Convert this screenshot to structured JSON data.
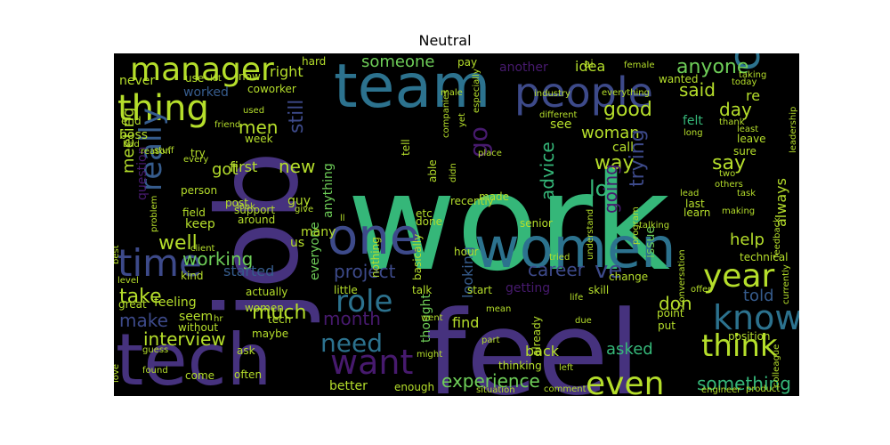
{
  "title": "Neutral",
  "palette": {
    "background": "#000000",
    "purple_dark": "#471a6e",
    "purple": "#46327e",
    "blue_purple": "#3d4a8a",
    "blue": "#365c8d",
    "teal_blue": "#2c728e",
    "teal": "#21908c",
    "green_teal": "#1fa088",
    "green": "#35b779",
    "light_green": "#6ece58",
    "lime": "#b5de2b"
  },
  "words": [
    {
      "text": "work",
      "color": "#35b779"
    },
    {
      "text": "feel",
      "color": "#46327e"
    },
    {
      "text": "job",
      "color": "#46327e"
    },
    {
      "text": "team",
      "color": "#2c728e"
    },
    {
      "text": "women",
      "color": "#2c728e"
    },
    {
      "text": "tech",
      "color": "#46327e"
    },
    {
      "text": "one",
      "color": "#3d4a8a"
    },
    {
      "text": "people",
      "color": "#3d4a8a"
    },
    {
      "text": "company",
      "color": "#2c728e"
    },
    {
      "text": "manager",
      "color": "#b5de2b"
    },
    {
      "text": "time",
      "color": "#3d4a8a"
    },
    {
      "text": "thing",
      "color": "#b5de2b"
    },
    {
      "text": "want",
      "color": "#471a6e"
    },
    {
      "text": "year",
      "color": "#b5de2b"
    },
    {
      "text": "know",
      "color": "#2c728e"
    },
    {
      "text": "think",
      "color": "#b5de2b"
    },
    {
      "text": "even",
      "color": "#b5de2b"
    },
    {
      "text": "role",
      "color": "#2c728e"
    },
    {
      "text": "really",
      "color": "#365c8d"
    },
    {
      "text": "need",
      "color": "#2c728e"
    },
    {
      "text": "working",
      "color": "#6ece58"
    },
    {
      "text": "say",
      "color": "#b5de2b"
    },
    {
      "text": "lot",
      "color": "#35b779"
    },
    {
      "text": "way",
      "color": "#b5de2b"
    },
    {
      "text": "go",
      "color": "#471a6e"
    },
    {
      "text": "good",
      "color": "#b5de2b"
    },
    {
      "text": "anyone",
      "color": "#6ece58"
    },
    {
      "text": "said",
      "color": "#b5de2b"
    },
    {
      "text": "day",
      "color": "#b5de2b"
    },
    {
      "text": "men",
      "color": "#b5de2b"
    },
    {
      "text": "still",
      "color": "#3d4a8a"
    },
    {
      "text": "someone",
      "color": "#6ece58"
    },
    {
      "text": "woman",
      "color": "#b5de2b"
    },
    {
      "text": "advice",
      "color": "#35b779"
    },
    {
      "text": "trying",
      "color": "#3d4a8a"
    },
    {
      "text": "going",
      "color": "#471a6e"
    },
    {
      "text": "career",
      "color": "#3d4a8a"
    },
    {
      "text": "ve",
      "color": "#3d4a8a"
    },
    {
      "text": "project",
      "color": "#3d4a8a"
    },
    {
      "text": "month",
      "color": "#471a6e"
    },
    {
      "text": "interview",
      "color": "#b5de2b"
    },
    {
      "text": "make",
      "color": "#3d4a8a"
    },
    {
      "text": "take",
      "color": "#b5de2b"
    },
    {
      "text": "much",
      "color": "#b5de2b"
    },
    {
      "text": "experience",
      "color": "#6ece58"
    },
    {
      "text": "something",
      "color": "#35b779"
    },
    {
      "text": "told",
      "color": "#365c8d"
    },
    {
      "text": "don",
      "color": "#b5de2b"
    },
    {
      "text": "help",
      "color": "#b5de2b"
    },
    {
      "text": "well",
      "color": "#b5de2b"
    },
    {
      "text": "meeting",
      "color": "#b5de2b"
    },
    {
      "text": "got",
      "color": "#b5de2b"
    },
    {
      "text": "new",
      "color": "#b5de2b"
    },
    {
      "text": "first",
      "color": "#b5de2b"
    },
    {
      "text": "asked",
      "color": "#35b779"
    },
    {
      "text": "always",
      "color": "#b5de2b"
    },
    {
      "text": "worked",
      "color": "#365c8d"
    },
    {
      "text": "right",
      "color": "#b5de2b"
    },
    {
      "text": "idea",
      "color": "#b5de2b"
    },
    {
      "text": "another",
      "color": "#471a6e"
    },
    {
      "text": "started",
      "color": "#365c8d"
    },
    {
      "text": "question",
      "color": "#471a6e"
    },
    {
      "text": "keep",
      "color": "#b5de2b"
    },
    {
      "text": "anything",
      "color": "#6ece58"
    },
    {
      "text": "everyone",
      "color": "#6ece58"
    },
    {
      "text": "guy",
      "color": "#b5de2b"
    },
    {
      "text": "many",
      "color": "#b5de2b"
    },
    {
      "text": "us",
      "color": "#b5de2b"
    },
    {
      "text": "looking",
      "color": "#365c8d"
    },
    {
      "text": "find",
      "color": "#b5de2b"
    },
    {
      "text": "thought",
      "color": "#6ece58"
    },
    {
      "text": "back",
      "color": "#b5de2b"
    },
    {
      "text": "getting",
      "color": "#471a6e"
    },
    {
      "text": "issue",
      "color": "#6ece58"
    },
    {
      "text": "seem",
      "color": "#b5de2b"
    },
    {
      "text": "feeling",
      "color": "#b5de2b"
    },
    {
      "text": "boss",
      "color": "#b5de2b"
    },
    {
      "text": "never",
      "color": "#b5de2b"
    },
    {
      "text": "re",
      "color": "#b5de2b"
    },
    {
      "text": "felt",
      "color": "#35b779"
    },
    {
      "text": "see",
      "color": "#b5de2b"
    },
    {
      "text": "call",
      "color": "#b5de2b"
    },
    {
      "text": "made",
      "color": "#b5de2b"
    },
    {
      "text": "better",
      "color": "#b5de2b"
    },
    {
      "text": "enough",
      "color": "#b5de2b"
    },
    {
      "text": "hour",
      "color": "#b5de2b"
    },
    {
      "text": "little",
      "color": "#b5de2b"
    },
    {
      "text": "talk",
      "color": "#b5de2b"
    },
    {
      "text": "start",
      "color": "#b5de2b"
    },
    {
      "text": "skill",
      "color": "#b5de2b"
    },
    {
      "text": "change",
      "color": "#b5de2b"
    },
    {
      "text": "point",
      "color": "#b5de2b"
    },
    {
      "text": "put",
      "color": "#b5de2b"
    },
    {
      "text": "sure",
      "color": "#b5de2b"
    },
    {
      "text": "leave",
      "color": "#b5de2b"
    },
    {
      "text": "last",
      "color": "#b5de2b"
    },
    {
      "text": "learn",
      "color": "#b5de2b"
    },
    {
      "text": "lead",
      "color": "#b5de2b"
    },
    {
      "text": "two",
      "color": "#b5de2b"
    },
    {
      "text": "others",
      "color": "#b5de2b"
    },
    {
      "text": "technical",
      "color": "#b5de2b"
    },
    {
      "text": "position",
      "color": "#b5de2b"
    },
    {
      "text": "coworker",
      "color": "#b5de2b"
    },
    {
      "text": "wanted",
      "color": "#b5de2b"
    },
    {
      "text": "female",
      "color": "#b5de2b"
    },
    {
      "text": "ai",
      "color": "#b5de2b"
    },
    {
      "text": "pay",
      "color": "#b5de2b"
    },
    {
      "text": "hard",
      "color": "#b5de2b"
    },
    {
      "text": "now",
      "color": "#b5de2b"
    },
    {
      "text": "use",
      "color": "#b5de2b"
    },
    {
      "text": "let",
      "color": "#b5de2b"
    },
    {
      "text": "end",
      "color": "#b5de2b"
    },
    {
      "text": "try",
      "color": "#b5de2b"
    },
    {
      "text": "week",
      "color": "#b5de2b"
    },
    {
      "text": "person",
      "color": "#b5de2b"
    },
    {
      "text": "field",
      "color": "#b5de2b"
    },
    {
      "text": "post",
      "color": "#b5de2b"
    },
    {
      "text": "support",
      "color": "#b5de2b"
    },
    {
      "text": "around",
      "color": "#b5de2b"
    },
    {
      "text": "look",
      "color": "#b5de2b"
    },
    {
      "text": "give",
      "color": "#b5de2b"
    },
    {
      "text": "actually",
      "color": "#b5de2b"
    },
    {
      "text": "women",
      "color": "#b5de2b"
    },
    {
      "text": "tech",
      "color": "#b5de2b"
    },
    {
      "text": "maybe",
      "color": "#b5de2b"
    },
    {
      "text": "ask",
      "color": "#b5de2b"
    },
    {
      "text": "often",
      "color": "#b5de2b"
    },
    {
      "text": "come",
      "color": "#b5de2b"
    },
    {
      "text": "kind",
      "color": "#b5de2b"
    },
    {
      "text": "level",
      "color": "#b5de2b"
    },
    {
      "text": "great",
      "color": "#b5de2b"
    },
    {
      "text": "without",
      "color": "#b5de2b"
    },
    {
      "text": "hr",
      "color": "#b5de2b"
    },
    {
      "text": "found",
      "color": "#b5de2b"
    },
    {
      "text": "love",
      "color": "#b5de2b"
    },
    {
      "text": "guess",
      "color": "#b5de2b"
    },
    {
      "text": "client",
      "color": "#b5de2b"
    },
    {
      "text": "best",
      "color": "#b5de2b"
    },
    {
      "text": "problem",
      "color": "#b5de2b"
    },
    {
      "text": "every",
      "color": "#b5de2b"
    },
    {
      "text": "reason",
      "color": "#b5de2b"
    },
    {
      "text": "bad",
      "color": "#b5de2b"
    },
    {
      "text": "friend",
      "color": "#b5de2b"
    },
    {
      "text": "used",
      "color": "#b5de2b"
    },
    {
      "text": "stuff",
      "color": "#b5de2b"
    },
    {
      "text": "tell",
      "color": "#b5de2b"
    },
    {
      "text": "able",
      "color": "#b5de2b"
    },
    {
      "text": "recently",
      "color": "#b5de2b"
    },
    {
      "text": "etc",
      "color": "#b5de2b"
    },
    {
      "text": "done",
      "color": "#b5de2b"
    },
    {
      "text": "nothing",
      "color": "#b5de2b"
    },
    {
      "text": "basically",
      "color": "#b5de2b"
    },
    {
      "text": "senior",
      "color": "#b5de2b"
    },
    {
      "text": "mean",
      "color": "#b5de2b"
    },
    {
      "text": "went",
      "color": "#b5de2b"
    },
    {
      "text": "might",
      "color": "#b5de2b"
    },
    {
      "text": "thinking",
      "color": "#b5de2b"
    },
    {
      "text": "already",
      "color": "#b5de2b"
    },
    {
      "text": "part",
      "color": "#b5de2b"
    },
    {
      "text": "place",
      "color": "#b5de2b"
    },
    {
      "text": "situation",
      "color": "#b5de2b"
    },
    {
      "text": "comment",
      "color": "#b5de2b"
    },
    {
      "text": "left",
      "color": "#b5de2b"
    },
    {
      "text": "life",
      "color": "#b5de2b"
    },
    {
      "text": "due",
      "color": "#b5de2b"
    },
    {
      "text": "offer",
      "color": "#b5de2b"
    },
    {
      "text": "conversation",
      "color": "#b5de2b"
    },
    {
      "text": "understand",
      "color": "#b5de2b"
    },
    {
      "text": "program",
      "color": "#b5de2b"
    },
    {
      "text": "talking",
      "color": "#b5de2b"
    },
    {
      "text": "engineer",
      "color": "#b5de2b"
    },
    {
      "text": "product",
      "color": "#b5de2b"
    },
    {
      "text": "colleague",
      "color": "#b5de2b"
    },
    {
      "text": "currently",
      "color": "#b5de2b"
    },
    {
      "text": "feedback",
      "color": "#b5de2b"
    },
    {
      "text": "leadership",
      "color": "#b5de2b"
    },
    {
      "text": "making",
      "color": "#b5de2b"
    },
    {
      "text": "task",
      "color": "#b5de2b"
    },
    {
      "text": "least",
      "color": "#b5de2b"
    },
    {
      "text": "thank",
      "color": "#b5de2b"
    },
    {
      "text": "long",
      "color": "#b5de2b"
    },
    {
      "text": "taking",
      "color": "#b5de2b"
    },
    {
      "text": "today",
      "color": "#b5de2b"
    },
    {
      "text": "industry",
      "color": "#b5de2b"
    },
    {
      "text": "everything",
      "color": "#b5de2b"
    },
    {
      "text": "different",
      "color": "#b5de2b"
    },
    {
      "text": "male",
      "color": "#b5de2b"
    },
    {
      "text": "yet",
      "color": "#b5de2b"
    },
    {
      "text": "especially",
      "color": "#b5de2b"
    },
    {
      "text": "companies",
      "color": "#b5de2b"
    },
    {
      "text": "didn",
      "color": "#b5de2b"
    },
    {
      "text": "tried",
      "color": "#b5de2b"
    },
    {
      "text": "ll",
      "color": "#b5de2b"
    }
  ]
}
